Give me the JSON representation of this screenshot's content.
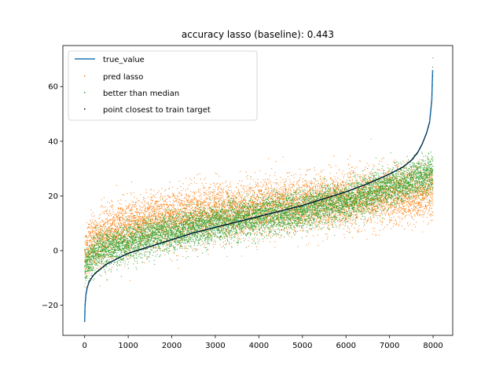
{
  "chart_data": {
    "type": "scatter",
    "title": "accuracy lasso (baseline): 0.443",
    "xlabel": "",
    "ylabel": "",
    "xlim": [
      -500,
      8450
    ],
    "ylim": [
      -31,
      75
    ],
    "xticks": [
      0,
      1000,
      2000,
      3000,
      4000,
      5000,
      6000,
      7000,
      8000
    ],
    "yticks": [
      -20,
      0,
      20,
      40,
      60
    ],
    "grid": false,
    "legend_position": "top-left",
    "n_points": 8000,
    "series": [
      {
        "name": "true_value",
        "kind": "line",
        "color": "#1f77b4",
        "x": [
          0,
          10,
          30,
          60,
          100,
          200,
          300,
          500,
          800,
          1000,
          1500,
          2000,
          2500,
          3000,
          3500,
          4000,
          4500,
          5000,
          5500,
          6000,
          6500,
          7000,
          7300,
          7500,
          7650,
          7750,
          7850,
          7920,
          7970,
          7999
        ],
        "y": [
          -26,
          -20,
          -16,
          -13.5,
          -11.5,
          -9,
          -7.5,
          -5,
          -2.5,
          -1,
          1.5,
          4,
          6.5,
          8.5,
          10.5,
          12.5,
          14.5,
          16.5,
          19,
          21.5,
          24.5,
          28,
          30.5,
          33,
          36,
          39,
          43,
          47,
          55,
          71
        ]
      },
      {
        "name": "pred lasso",
        "kind": "points",
        "color": "#ff7f0e",
        "x": [
          0,
          100,
          300,
          500,
          1000,
          2000,
          3000,
          4000,
          5000,
          6000,
          7000,
          7500,
          8000
        ],
        "y": [
          -2,
          2,
          4,
          6,
          9,
          12,
          14,
          15.5,
          17,
          18.5,
          20,
          21,
          22
        ],
        "spread": 5
      },
      {
        "name": "better than median",
        "kind": "points",
        "color": "#2ca02c",
        "x": [
          0,
          100,
          300,
          500,
          1000,
          2000,
          3000,
          4000,
          5000,
          6000,
          7000,
          7500,
          8000
        ],
        "y": [
          -6,
          -4,
          -1,
          1,
          3,
          7,
          10,
          12.5,
          15,
          18,
          23,
          26,
          28
        ],
        "spread": 3.5
      },
      {
        "name": "point closest to train target",
        "kind": "points",
        "color": "#000000"
      }
    ]
  }
}
